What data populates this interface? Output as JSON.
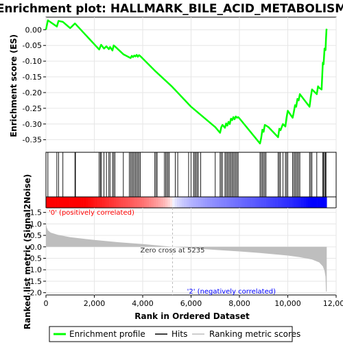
{
  "chart_data": {
    "type": "line",
    "title": "Enrichment plot: HALLMARK_BILE_ACID_METABOLISM",
    "xlabel": "Rank in Ordered Dataset",
    "xlim": [
      0,
      12000
    ],
    "x_ticks": [
      0,
      2000,
      4000,
      6000,
      8000,
      10000,
      12000
    ],
    "x_tick_labels": [
      "0",
      "2,000",
      "4,000",
      "6,000",
      "8,000",
      "10,000",
      "12,000"
    ],
    "n_genes": 11610,
    "es_panel": {
      "ylabel": "Enrichment score (ES)",
      "ylim": [
        -0.39,
        0.04
      ],
      "y_ticks": [
        0.0,
        -0.05,
        -0.1,
        -0.15,
        -0.2,
        -0.25,
        -0.3,
        -0.35
      ],
      "y_tick_labels": [
        "0.00",
        "-0.05",
        "-0.10",
        "-0.15",
        "-0.20",
        "-0.25",
        "-0.30",
        "-0.35"
      ],
      "grid": true,
      "series": [
        {
          "name": "Enrichment profile",
          "color": "#00ff00",
          "x": [
            0,
            80,
            450,
            520,
            700,
            1000,
            1200,
            2200,
            2280,
            2400,
            2500,
            2600,
            2650,
            2750,
            2800,
            2850,
            3200,
            3500,
            3550,
            3600,
            3650,
            3700,
            3750,
            3800,
            3850,
            3900,
            4500,
            5200,
            6000,
            7000,
            7200,
            7250,
            7300,
            7400,
            7450,
            7500,
            7550,
            7600,
            7650,
            7700,
            7750,
            7800,
            7850,
            7900,
            7950,
            8000,
            8850,
            8900,
            8950,
            9000,
            9050,
            9100,
            9200,
            9600,
            9650,
            9700,
            9800,
            9900,
            9950,
            10000,
            10200,
            10250,
            10300,
            10350,
            10400,
            10450,
            10500,
            10900,
            10950,
            11000,
            11200,
            11250,
            11300,
            11400,
            11450,
            11480,
            11520,
            11560,
            11580,
            11600,
            11610
          ],
          "y": [
            0.0,
            0.03,
            0.01,
            0.028,
            0.025,
            0.005,
            0.02,
            -0.063,
            -0.048,
            -0.06,
            -0.053,
            -0.062,
            -0.055,
            -0.066,
            -0.05,
            -0.053,
            -0.078,
            -0.09,
            -0.083,
            -0.087,
            -0.082,
            -0.085,
            -0.08,
            -0.086,
            -0.081,
            -0.084,
            -0.13,
            -0.18,
            -0.245,
            -0.31,
            -0.328,
            -0.31,
            -0.303,
            -0.312,
            -0.298,
            -0.305,
            -0.293,
            -0.3,
            -0.283,
            -0.288,
            -0.278,
            -0.285,
            -0.276,
            -0.28,
            -0.278,
            -0.282,
            -0.362,
            -0.345,
            -0.318,
            -0.325,
            -0.303,
            -0.305,
            -0.31,
            -0.342,
            -0.315,
            -0.32,
            -0.3,
            -0.308,
            -0.28,
            -0.258,
            -0.28,
            -0.262,
            -0.24,
            -0.245,
            -0.22,
            -0.225,
            -0.205,
            -0.245,
            -0.215,
            -0.19,
            -0.205,
            -0.18,
            -0.185,
            -0.19,
            -0.105,
            -0.11,
            -0.06,
            -0.065,
            -0.03,
            0.0,
            0.003
          ]
        }
      ]
    },
    "hits": [
      80,
      450,
      520,
      700,
      1200,
      1220,
      2200,
      2250,
      2280,
      2400,
      2500,
      2600,
      2650,
      2750,
      2800,
      2850,
      3200,
      3450,
      3500,
      3550,
      3600,
      3650,
      3700,
      3750,
      3800,
      3850,
      3900,
      4500,
      4550,
      4600,
      4900,
      4950,
      5000,
      5050,
      5100,
      5350,
      5450,
      5900,
      6000,
      6100,
      6150,
      6200,
      6250,
      6300,
      6400,
      7000,
      7200,
      7250,
      7300,
      7400,
      7450,
      7500,
      7550,
      7600,
      7650,
      7700,
      7750,
      7800,
      7850,
      7900,
      7950,
      8850,
      8900,
      8950,
      9000,
      9050,
      9100,
      9600,
      9650,
      9700,
      9800,
      9900,
      9950,
      10000,
      10200,
      10250,
      10300,
      10350,
      10400,
      10450,
      10500,
      10900,
      10950,
      11000,
      11200,
      11450,
      11480,
      11520,
      11560,
      11580
    ],
    "hits_label": "Hits",
    "metric_panel": {
      "ylabel": "Ranked list metric (Signal2Noise)",
      "ylim": [
        -2.1,
        1.7
      ],
      "y_ticks": [
        1.5,
        1.0,
        0.5,
        0.0,
        -0.5,
        -1.0,
        -1.5,
        -2.0
      ],
      "y_tick_labels": [
        "1.5",
        "1.0",
        "0.5",
        "0.0",
        "-0.5",
        "-1.0",
        "-1.5",
        "-2.0"
      ],
      "grid": true,
      "name": "Ranking metric scores",
      "color": "#bebebe",
      "x": [
        0,
        30,
        80,
        200,
        500,
        1000,
        2000,
        3000,
        4000,
        5235,
        6000,
        7000,
        8000,
        9000,
        10000,
        10500,
        11000,
        11300,
        11450,
        11520,
        11560,
        11580,
        11610
      ],
      "values": [
        1.0,
        0.85,
        0.72,
        0.62,
        0.52,
        0.42,
        0.3,
        0.2,
        0.12,
        0.0,
        -0.06,
        -0.13,
        -0.2,
        -0.28,
        -0.38,
        -0.45,
        -0.55,
        -0.68,
        -0.85,
        -1.05,
        -1.3,
        -1.95,
        -1.95
      ],
      "zero_cross": 5235,
      "zero_cross_label": "Zero cross at 5235",
      "pos_label": "'0' (positively correlated)",
      "pos_color": "#ff0000",
      "neg_label": "'2' (negatively correlated)",
      "neg_color": "#0000ff"
    },
    "legend": {
      "placement": "bottom",
      "entries": [
        "Enrichment profile",
        "Hits",
        "Ranking metric scores"
      ]
    }
  }
}
